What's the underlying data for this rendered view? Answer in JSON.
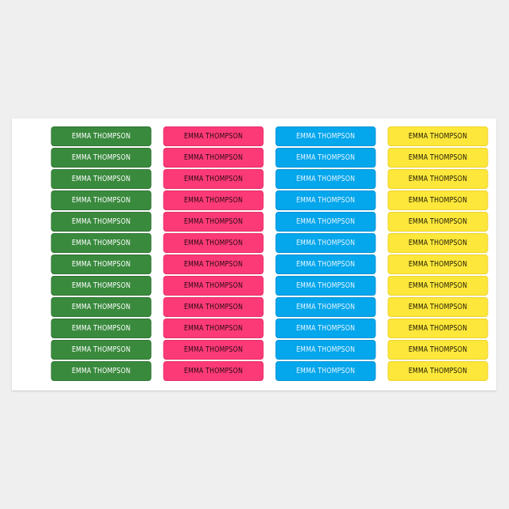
{
  "sheet": {
    "columns": [
      {
        "color": "#3a8a3e",
        "text_color": "#ffffff",
        "border": "#2f7433",
        "labels": [
          "EMMA THOMPSON",
          "EMMA THOMPSON",
          "EMMA THOMPSON",
          "EMMA THOMPSON",
          "EMMA THOMPSON",
          "EMMA THOMPSON",
          "EMMA THOMPSON",
          "EMMA THOMPSON",
          "EMMA THOMPSON",
          "EMMA THOMPSON",
          "EMMA THOMPSON",
          "EMMA THOMPSON"
        ]
      },
      {
        "color": "#fc3a78",
        "text_color": "#2a0a14",
        "border": "#e42e68",
        "labels": [
          "EMMA THOMPSON",
          "EMMA THOMPSON",
          "EMMA THOMPSON",
          "EMMA THOMPSON",
          "EMMA THOMPSON",
          "EMMA THOMPSON",
          "EMMA THOMPSON",
          "EMMA THOMPSON",
          "EMMA THOMPSON",
          "EMMA THOMPSON",
          "EMMA THOMPSON",
          "EMMA THOMPSON"
        ]
      },
      {
        "color": "#04a6ec",
        "text_color": "#e8f6ff",
        "border": "#0894d4",
        "labels": [
          "EMMA THOMPSON",
          "EMMA THOMPSON",
          "EMMA THOMPSON",
          "EMMA THOMPSON",
          "EMMA THOMPSON",
          "EMMA THOMPSON",
          "EMMA THOMPSON",
          "EMMA THOMPSON",
          "EMMA THOMPSON",
          "EMMA THOMPSON",
          "EMMA THOMPSON",
          "EMMA THOMPSON"
        ]
      },
      {
        "color": "#fde73a",
        "text_color": "#1e1a08",
        "border": "#ecd22c",
        "labels": [
          "EMMA THOMPSON",
          "EMMA THOMPSON",
          "EMMA THOMPSON",
          "EMMA THOMPSON",
          "EMMA THOMPSON",
          "EMMA THOMPSON",
          "EMMA THOMPSON",
          "EMMA THOMPSON",
          "EMMA THOMPSON",
          "EMMA THOMPSON",
          "EMMA THOMPSON",
          "EMMA THOMPSON"
        ]
      }
    ]
  }
}
